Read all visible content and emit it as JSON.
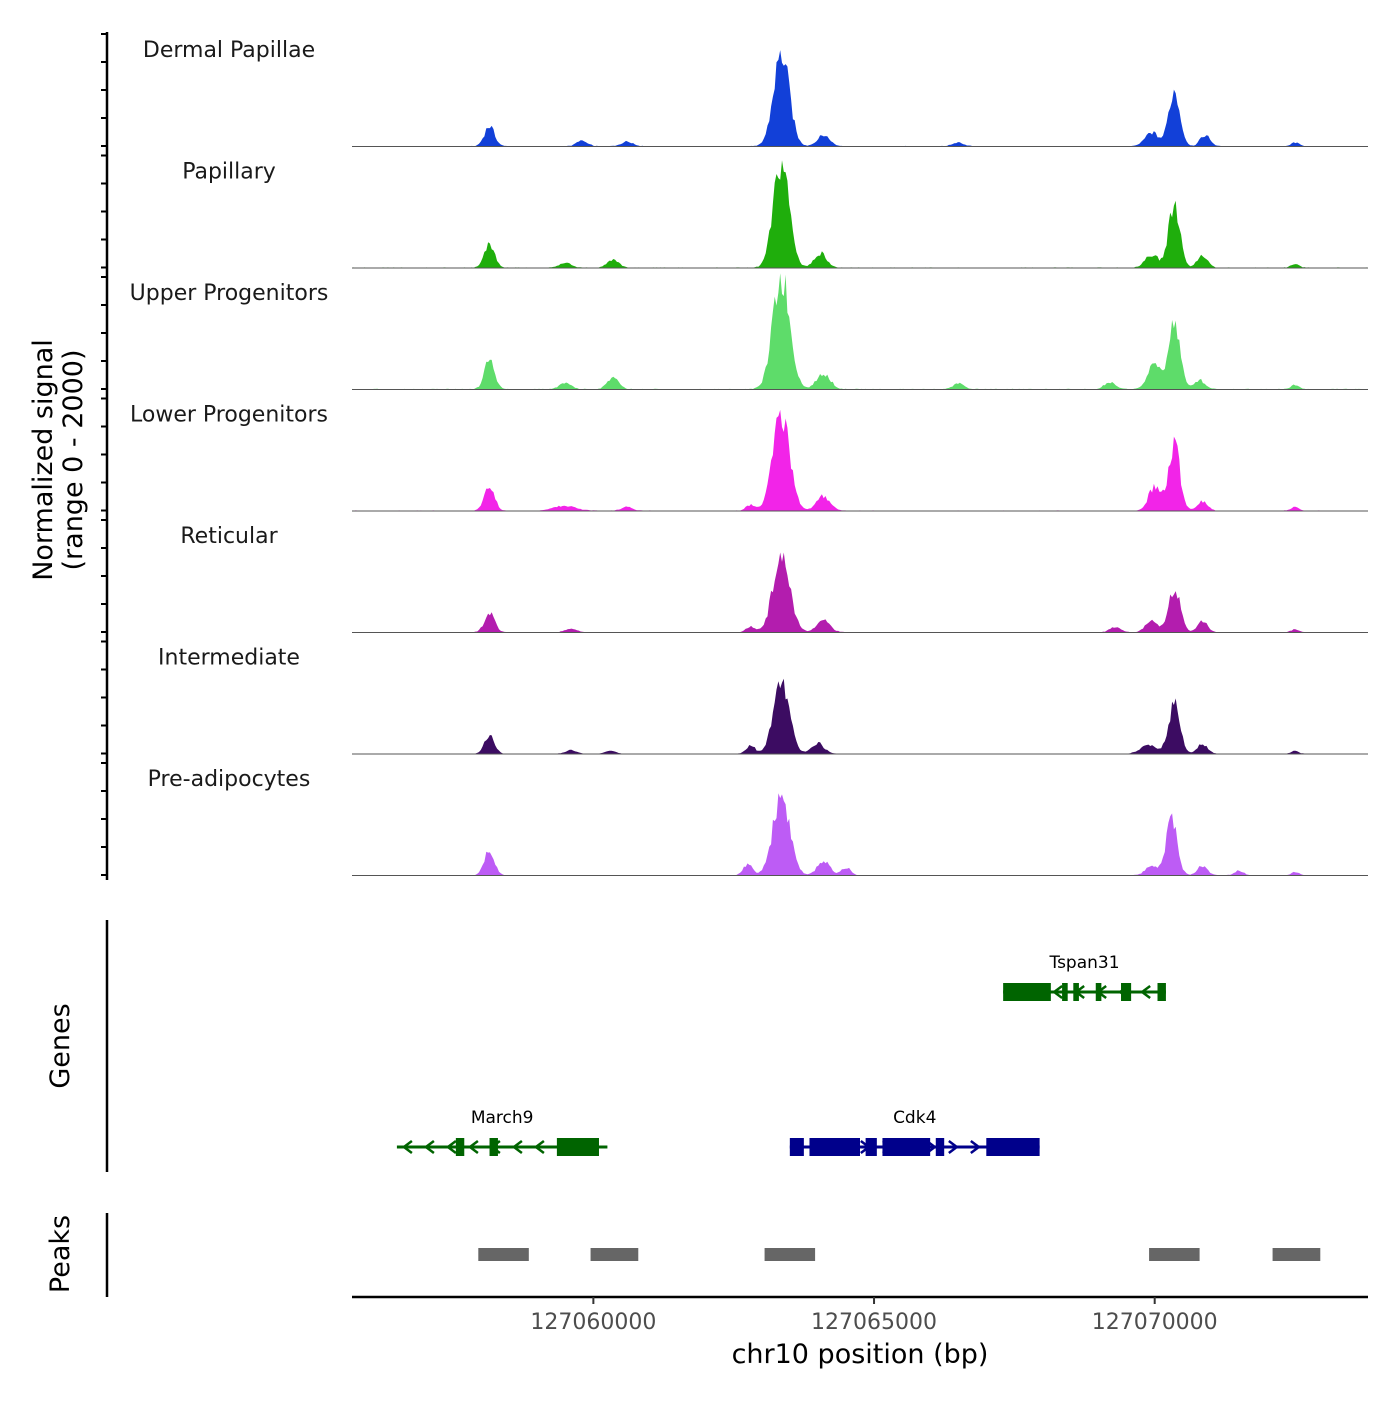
{
  "chart_data": {
    "type": "area",
    "title": "",
    "chromosome": "chr10",
    "xlabel": "chr10 position (bp)",
    "ylabel_line1": "Normalized signal",
    "ylabel_line2": "(range 0 - 2000)",
    "xlim": [
      127055700,
      127073800
    ],
    "ylim": [
      0,
      2000
    ],
    "x_ticks": [
      127060000,
      127065000,
      127070000
    ],
    "x_tick_labels": [
      "127060000",
      "127065000",
      "127070000"
    ],
    "tracks": [
      {
        "name": "Dermal Papillae",
        "color": "#1240D8",
        "scale": 0.82,
        "peaks": [
          [
            127058150,
            0.22,
            90
          ],
          [
            127063350,
            1.0,
            140
          ],
          [
            127064100,
            0.12,
            110
          ],
          [
            127070350,
            0.6,
            100
          ],
          [
            127069950,
            0.15,
            120
          ],
          [
            127070900,
            0.12,
            90
          ],
          [
            127072500,
            0.04,
            70
          ],
          [
            127059800,
            0.06,
            100
          ],
          [
            127060600,
            0.05,
            100
          ],
          [
            127066500,
            0.04,
            100
          ]
        ]
      },
      {
        "name": "Papillary",
        "color": "#1FAE0C",
        "scale": 0.94,
        "peaks": [
          [
            127058150,
            0.22,
            90
          ],
          [
            127063350,
            1.0,
            140
          ],
          [
            127064050,
            0.14,
            110
          ],
          [
            127070350,
            0.6,
            100
          ],
          [
            127069950,
            0.12,
            120
          ],
          [
            127070850,
            0.12,
            90
          ],
          [
            127072500,
            0.04,
            70
          ],
          [
            127060350,
            0.08,
            100
          ],
          [
            127059500,
            0.05,
            100
          ]
        ]
      },
      {
        "name": "Upper Progenitors",
        "color": "#5EDC6A",
        "scale": 1.0,
        "peaks": [
          [
            127058150,
            0.26,
            90
          ],
          [
            127063350,
            1.0,
            150
          ],
          [
            127064100,
            0.14,
            120
          ],
          [
            127070350,
            0.6,
            100
          ],
          [
            127070000,
            0.22,
            120
          ],
          [
            127070800,
            0.08,
            100
          ],
          [
            127072500,
            0.04,
            70
          ],
          [
            127060350,
            0.1,
            100
          ],
          [
            127059500,
            0.06,
            100
          ],
          [
            127066500,
            0.05,
            100
          ],
          [
            127069200,
            0.06,
            100
          ]
        ]
      },
      {
        "name": "Lower Progenitors",
        "color": "#F224E8",
        "scale": 0.86,
        "peaks": [
          [
            127058150,
            0.26,
            90
          ],
          [
            127063350,
            1.0,
            150
          ],
          [
            127064100,
            0.15,
            120
          ],
          [
            127070350,
            0.68,
            100
          ],
          [
            127070000,
            0.25,
            110
          ],
          [
            127070850,
            0.1,
            90
          ],
          [
            127072500,
            0.04,
            70
          ],
          [
            127062800,
            0.06,
            80
          ],
          [
            127059500,
            0.05,
            200
          ],
          [
            127060600,
            0.04,
            100
          ]
        ]
      },
      {
        "name": "Reticular",
        "color": "#B31DAE",
        "scale": 0.68,
        "peaks": [
          [
            127058150,
            0.25,
            90
          ],
          [
            127063350,
            1.0,
            150
          ],
          [
            127064100,
            0.15,
            120
          ],
          [
            127070350,
            0.6,
            100
          ],
          [
            127069950,
            0.15,
            110
          ],
          [
            127070850,
            0.15,
            90
          ],
          [
            127072500,
            0.04,
            70
          ],
          [
            127062800,
            0.07,
            80
          ],
          [
            127059600,
            0.05,
            100
          ],
          [
            127069300,
            0.07,
            100
          ]
        ]
      },
      {
        "name": "Intermediate",
        "color": "#3C0C62",
        "scale": 0.64,
        "peaks": [
          [
            127058150,
            0.25,
            90
          ],
          [
            127063350,
            1.0,
            140
          ],
          [
            127064000,
            0.15,
            110
          ],
          [
            127070350,
            0.7,
            100
          ],
          [
            127069900,
            0.12,
            150
          ],
          [
            127070850,
            0.14,
            90
          ],
          [
            127072500,
            0.04,
            70
          ],
          [
            127062800,
            0.12,
            80
          ],
          [
            127059600,
            0.05,
            100
          ],
          [
            127060300,
            0.04,
            100
          ]
        ]
      },
      {
        "name": "Pre-adipocytes",
        "color": "#BD5CF5",
        "scale": 0.71,
        "peaks": [
          [
            127058150,
            0.32,
            90
          ],
          [
            127063350,
            1.0,
            150
          ],
          [
            127064100,
            0.18,
            110
          ],
          [
            127070300,
            0.7,
            100
          ],
          [
            127069950,
            0.12,
            110
          ],
          [
            127070850,
            0.12,
            90
          ],
          [
            127072500,
            0.04,
            70
          ],
          [
            127062750,
            0.14,
            80
          ],
          [
            127064500,
            0.1,
            80
          ],
          [
            127071500,
            0.06,
            80
          ]
        ]
      }
    ],
    "genes_label": "Genes",
    "genes": [
      {
        "name": "Tspan31",
        "strand": "-",
        "color": "#006400",
        "start": 127067300,
        "end": 127070200,
        "row": 0,
        "exons": [
          [
            127067300,
            127068150
          ],
          [
            127068350,
            127068450
          ],
          [
            127068550,
            127068650
          ],
          [
            127068950,
            127069050
          ],
          [
            127069400,
            127069580
          ],
          [
            127070050,
            127070200
          ]
        ]
      },
      {
        "name": "March9",
        "strand": "-",
        "color": "#006400",
        "start": 127056500,
        "end": 127060250,
        "row": 1,
        "exons": [
          [
            127057550,
            127057700
          ],
          [
            127058150,
            127058300
          ],
          [
            127059350,
            127060100
          ]
        ]
      },
      {
        "name": "Cdk4",
        "strand": "+",
        "color": "#00008B",
        "start": 127063500,
        "end": 127067950,
        "row": 1,
        "exons": [
          [
            127063500,
            127063750
          ],
          [
            127063850,
            127064750
          ],
          [
            127064850,
            127065050
          ],
          [
            127065150,
            127066000
          ],
          [
            127066100,
            127066250
          ],
          [
            127067000,
            127067950
          ]
        ]
      }
    ],
    "peaks_label": "Peaks",
    "peak_regions": [
      [
        127057950,
        127058850
      ],
      [
        127059950,
        127060800
      ],
      [
        127063050,
        127063950
      ],
      [
        127069900,
        127070800
      ],
      [
        127072100,
        127072950
      ]
    ]
  }
}
